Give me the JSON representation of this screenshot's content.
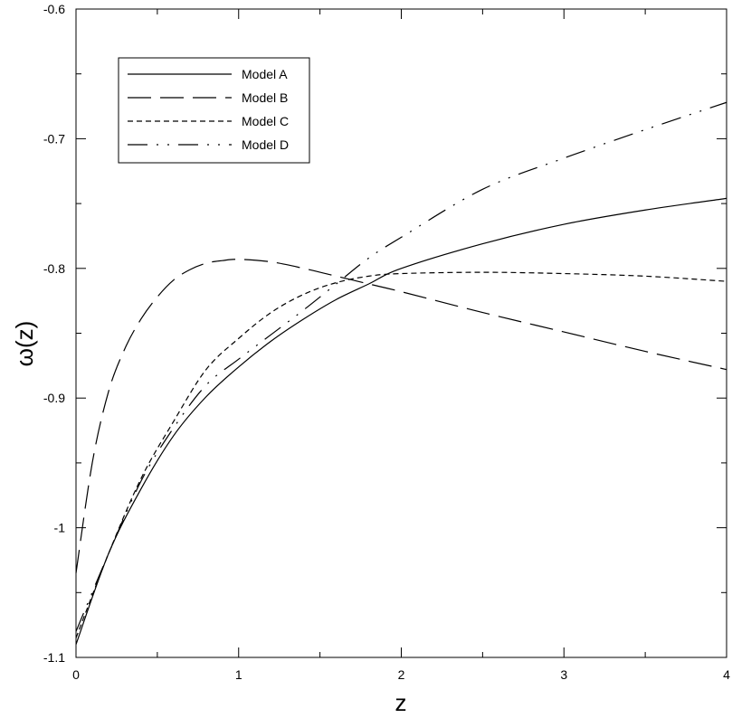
{
  "chart_data": {
    "type": "line",
    "title": "",
    "xlabel": "z",
    "ylabel": "ω(z)",
    "xlim": [
      0,
      4
    ],
    "ylim": [
      -1.1,
      -0.6
    ],
    "x_ticks": [
      0,
      1,
      2,
      3,
      4
    ],
    "x_tick_labels": [
      "0",
      "1",
      "2",
      "3",
      "4"
    ],
    "y_ticks": [
      -1.1,
      -1,
      -0.9,
      -0.8,
      -0.7,
      -0.6
    ],
    "y_tick_labels": [
      "-1.1",
      "-1",
      "-0.9",
      "-0.8",
      "-0.7",
      "-0.6"
    ],
    "grid": false,
    "legend_position": "top-left",
    "series": [
      {
        "name": "Model A",
        "dash": "solid",
        "color": "#000000",
        "x": [
          0,
          0.2,
          0.4,
          0.6,
          0.8,
          1.0,
          1.2,
          1.4,
          1.6,
          1.8,
          2.0,
          2.5,
          3.0,
          3.5,
          4.0
        ],
        "y": [
          -1.09,
          -1.02,
          -0.97,
          -0.929,
          -0.899,
          -0.876,
          -0.856,
          -0.839,
          -0.824,
          -0.812,
          -0.8,
          -0.781,
          -0.766,
          -0.755,
          -0.746
        ]
      },
      {
        "name": "Model B",
        "dash": "long-dash",
        "color": "#000000",
        "x": [
          0,
          0.1,
          0.2,
          0.3,
          0.4,
          0.5,
          0.6,
          0.7,
          0.8,
          0.9,
          1.0,
          1.2,
          1.4,
          1.6,
          1.8,
          2.0,
          2.5,
          3.0,
          3.5,
          4.0
        ],
        "y": [
          -1.035,
          -0.95,
          -0.895,
          -0.862,
          -0.839,
          -0.822,
          -0.809,
          -0.801,
          -0.796,
          -0.794,
          -0.793,
          -0.795,
          -0.8,
          -0.806,
          -0.812,
          -0.818,
          -0.834,
          -0.849,
          -0.864,
          -0.878
        ]
      },
      {
        "name": "Model C",
        "dash": "short-dash",
        "color": "#000000",
        "x": [
          0,
          0.2,
          0.4,
          0.6,
          0.8,
          1.0,
          1.2,
          1.4,
          1.6,
          1.8,
          2.0,
          2.5,
          3.0,
          3.5,
          4.0
        ],
        "y": [
          -1.085,
          -1.02,
          -0.962,
          -0.918,
          -0.878,
          -0.854,
          -0.834,
          -0.82,
          -0.811,
          -0.806,
          -0.804,
          -0.803,
          -0.804,
          -0.806,
          -0.81
        ]
      },
      {
        "name": "Model D",
        "dash": "dash-dot-dot",
        "color": "#000000",
        "x": [
          0,
          0.2,
          0.4,
          0.6,
          0.8,
          1.0,
          1.2,
          1.4,
          1.6,
          1.8,
          2.0,
          2.5,
          3.0,
          3.5,
          4.0
        ],
        "y": [
          -1.08,
          -1.02,
          -0.964,
          -0.923,
          -0.89,
          -0.87,
          -0.851,
          -0.832,
          -0.812,
          -0.792,
          -0.776,
          -0.739,
          -0.715,
          -0.693,
          -0.672
        ]
      }
    ]
  }
}
